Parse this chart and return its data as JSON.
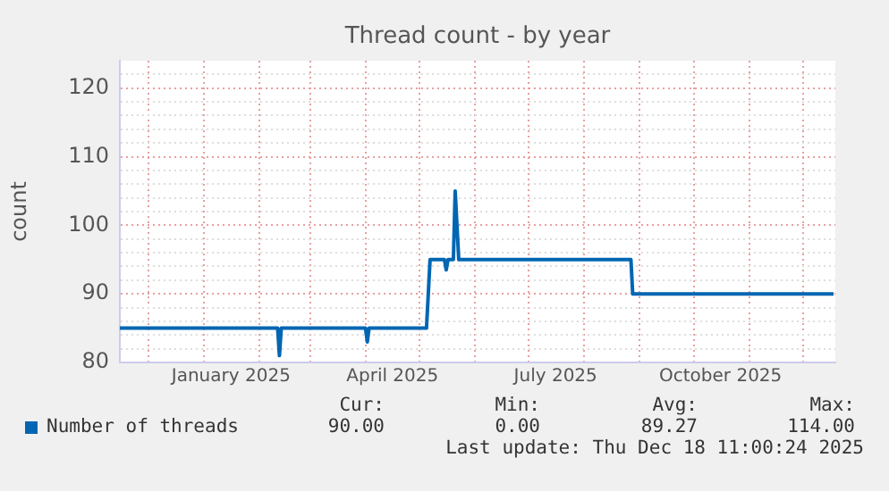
{
  "chart_data": {
    "type": "line",
    "title": "Thread count - by year",
    "ylabel": "count",
    "xlim": [
      "2024-11-15",
      "2025-12-19"
    ],
    "xticks": [
      {
        "value": "2024-12-01",
        "label": null
      },
      {
        "value": "2025-01-01",
        "label": null
      },
      {
        "value": "2025-01-16",
        "label": "January 2025"
      },
      {
        "value": "2025-02-01",
        "label": null
      },
      {
        "value": "2025-03-01",
        "label": null
      },
      {
        "value": "2025-04-01",
        "label": null
      },
      {
        "value": "2025-04-16",
        "label": "April 2025"
      },
      {
        "value": "2025-05-01",
        "label": null
      },
      {
        "value": "2025-06-01",
        "label": null
      },
      {
        "value": "2025-07-01",
        "label": null
      },
      {
        "value": "2025-07-16",
        "label": "July 2025"
      },
      {
        "value": "2025-08-01",
        "label": null
      },
      {
        "value": "2025-09-01",
        "label": null
      },
      {
        "value": "2025-10-01",
        "label": null
      },
      {
        "value": "2025-10-16",
        "label": "October 2025"
      },
      {
        "value": "2025-11-01",
        "label": null
      },
      {
        "value": "2025-12-01",
        "label": null
      }
    ],
    "ylim": [
      80,
      124
    ],
    "yticks": [
      80,
      {
        "value": 82,
        "label": null
      },
      {
        "value": 84,
        "label": null
      },
      {
        "value": 86,
        "label": null
      },
      {
        "value": 88,
        "label": null
      },
      90,
      {
        "value": 92,
        "label": null
      },
      {
        "value": 94,
        "label": null
      },
      {
        "value": 96,
        "label": null
      },
      {
        "value": 98,
        "label": null
      },
      100,
      {
        "value": 102,
        "label": null
      },
      {
        "value": 104,
        "label": null
      },
      {
        "value": 106,
        "label": null
      },
      {
        "value": 108,
        "label": null
      },
      110,
      {
        "value": 112,
        "label": null
      },
      {
        "value": 114,
        "label": null
      },
      {
        "value": 116,
        "label": null
      },
      {
        "value": 118,
        "label": null
      },
      120,
      {
        "value": 122,
        "label": null
      }
    ],
    "grid": true,
    "legend": "bottom",
    "marker": "none",
    "line_style": "solid",
    "series": [
      {
        "name": "Number of threads",
        "color": "#0066b3",
        "x": [
          "2024-11-15",
          "2025-02-11",
          "2025-02-12",
          "2025-02-13",
          "2025-04-01",
          "2025-04-02",
          "2025-04-03",
          "2025-05-05",
          "2025-05-07",
          "2025-05-15",
          "2025-05-16",
          "2025-05-17",
          "2025-05-20",
          "2025-05-21",
          "2025-05-23",
          "2025-08-27",
          "2025-08-28",
          "2025-12-18"
        ],
        "values": [
          85,
          85,
          81,
          85,
          85,
          83,
          85,
          85,
          95,
          95,
          93.5,
          95,
          95,
          105,
          95,
          95,
          90,
          90
        ]
      }
    ],
    "annotations": [
      "Cur:",
      "Min:",
      "Avg:",
      "Max:",
      "90.00",
      "0.00",
      "89.27",
      "114.00",
      "Last update: Thu Dec 18 11:00:24 2025"
    ]
  }
}
